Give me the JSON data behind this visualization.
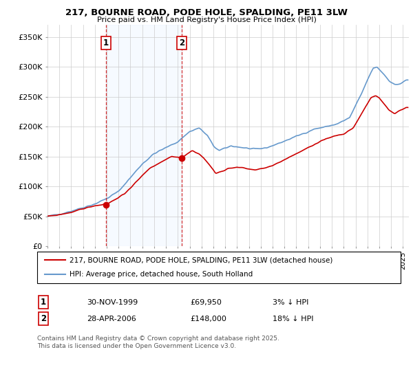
{
  "title": "217, BOURNE ROAD, PODE HOLE, SPALDING, PE11 3LW",
  "subtitle": "Price paid vs. HM Land Registry's House Price Index (HPI)",
  "ylabel_ticks": [
    "£0",
    "£50K",
    "£100K",
    "£150K",
    "£200K",
    "£250K",
    "£300K",
    "£350K"
  ],
  "ytick_values": [
    0,
    50000,
    100000,
    150000,
    200000,
    250000,
    300000,
    350000
  ],
  "ylim": [
    0,
    370000
  ],
  "xlim_start": 1995.0,
  "xlim_end": 2025.5,
  "sale1_x": 1999.92,
  "sale1_y": 69950,
  "sale1_label": "1",
  "sale2_x": 2006.33,
  "sale2_y": 148000,
  "sale2_label": "2",
  "red_color": "#cc0000",
  "blue_color": "#6699cc",
  "shade_color": "#ddeeff",
  "legend_line1": "217, BOURNE ROAD, PODE HOLE, SPALDING, PE11 3LW (detached house)",
  "legend_line2": "HPI: Average price, detached house, South Holland",
  "table_row1": [
    "1",
    "30-NOV-1999",
    "£69,950",
    "3% ↓ HPI"
  ],
  "table_row2": [
    "2",
    "28-APR-2006",
    "£148,000",
    "18% ↓ HPI"
  ],
  "footnote": "Contains HM Land Registry data © Crown copyright and database right 2025.\nThis data is licensed under the Open Government Licence v3.0.",
  "background_color": "#ffffff",
  "grid_color": "#cccccc"
}
